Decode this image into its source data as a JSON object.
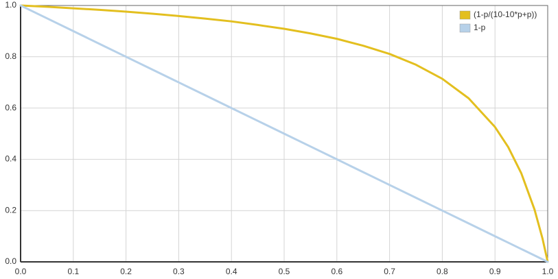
{
  "chart_data": {
    "type": "line",
    "x": [
      0,
      0.05,
      0.1,
      0.15,
      0.2,
      0.25,
      0.3,
      0.35,
      0.4,
      0.45,
      0.5,
      0.55,
      0.6,
      0.65,
      0.7,
      0.75,
      0.8,
      0.85,
      0.9,
      0.925,
      0.95,
      0.975,
      0.99,
      1
    ],
    "series": [
      {
        "name": "(1-p/(10-10*p+p))",
        "color": "#e3bf1f",
        "values": [
          1,
          0.995,
          0.989,
          0.983,
          0.976,
          0.968,
          0.959,
          0.949,
          0.938,
          0.924,
          0.909,
          0.891,
          0.87,
          0.843,
          0.811,
          0.769,
          0.714,
          0.638,
          0.526,
          0.448,
          0.345,
          0.204,
          0.092,
          0
        ]
      },
      {
        "name": "1-p",
        "color": "#b7d1e9",
        "values": [
          1,
          0.95,
          0.9,
          0.85,
          0.8,
          0.75,
          0.7,
          0.65,
          0.6,
          0.55,
          0.5,
          0.45,
          0.4,
          0.35,
          0.3,
          0.25,
          0.2,
          0.15,
          0.1,
          0.075,
          0.05,
          0.025,
          0.01,
          0
        ]
      }
    ],
    "xlim": [
      0,
      1
    ],
    "ylim": [
      0,
      1
    ],
    "xticks": [
      {
        "value": 0,
        "label": "0.0"
      },
      0.1,
      0.2,
      0.3,
      0.4,
      0.5,
      0.6,
      0.7,
      0.8,
      0.9,
      {
        "value": 1,
        "label": "1.0"
      }
    ],
    "yticks": [
      {
        "value": 0,
        "label": "0.0"
      },
      0.2,
      0.4,
      0.6,
      0.8,
      {
        "value": 1,
        "label": "1.0"
      }
    ],
    "grid": true,
    "legend": "top-right"
  }
}
